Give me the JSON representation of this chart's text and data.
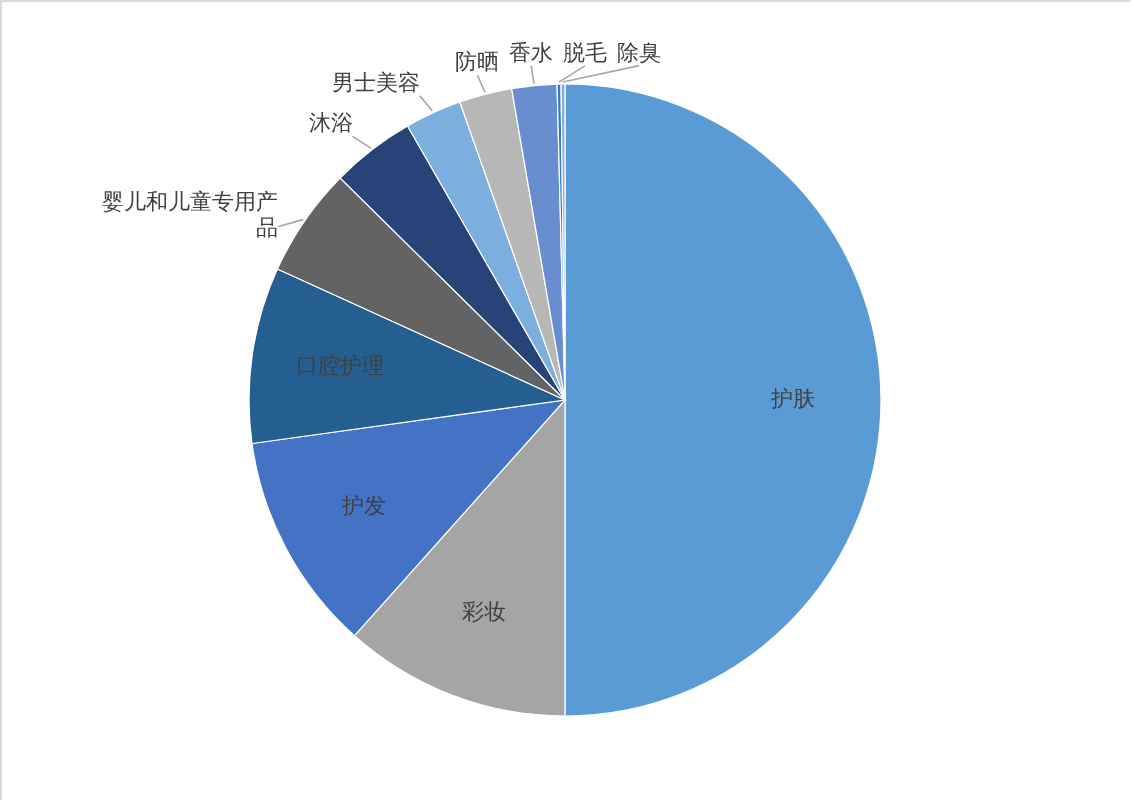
{
  "chart_data": {
    "type": "pie",
    "categories": [
      "护肤",
      "彩妆",
      "护发",
      "口腔护理",
      "婴儿和儿童专用产品",
      "沐浴",
      "男士美容",
      "防晒",
      "香水",
      "脱毛",
      "除臭"
    ],
    "values": [
      50.0,
      11.6,
      11.2,
      9.0,
      5.6,
      4.3,
      2.9,
      2.7,
      2.3,
      0.2,
      0.2
    ],
    "colors": [
      "#5b9bd5",
      "#a5a5a5",
      "#4472c4",
      "#255e91",
      "#636363",
      "#264478",
      "#7cafdd",
      "#b7b7b7",
      "#698ed0",
      "#327dc2",
      "#8faadc"
    ]
  }
}
